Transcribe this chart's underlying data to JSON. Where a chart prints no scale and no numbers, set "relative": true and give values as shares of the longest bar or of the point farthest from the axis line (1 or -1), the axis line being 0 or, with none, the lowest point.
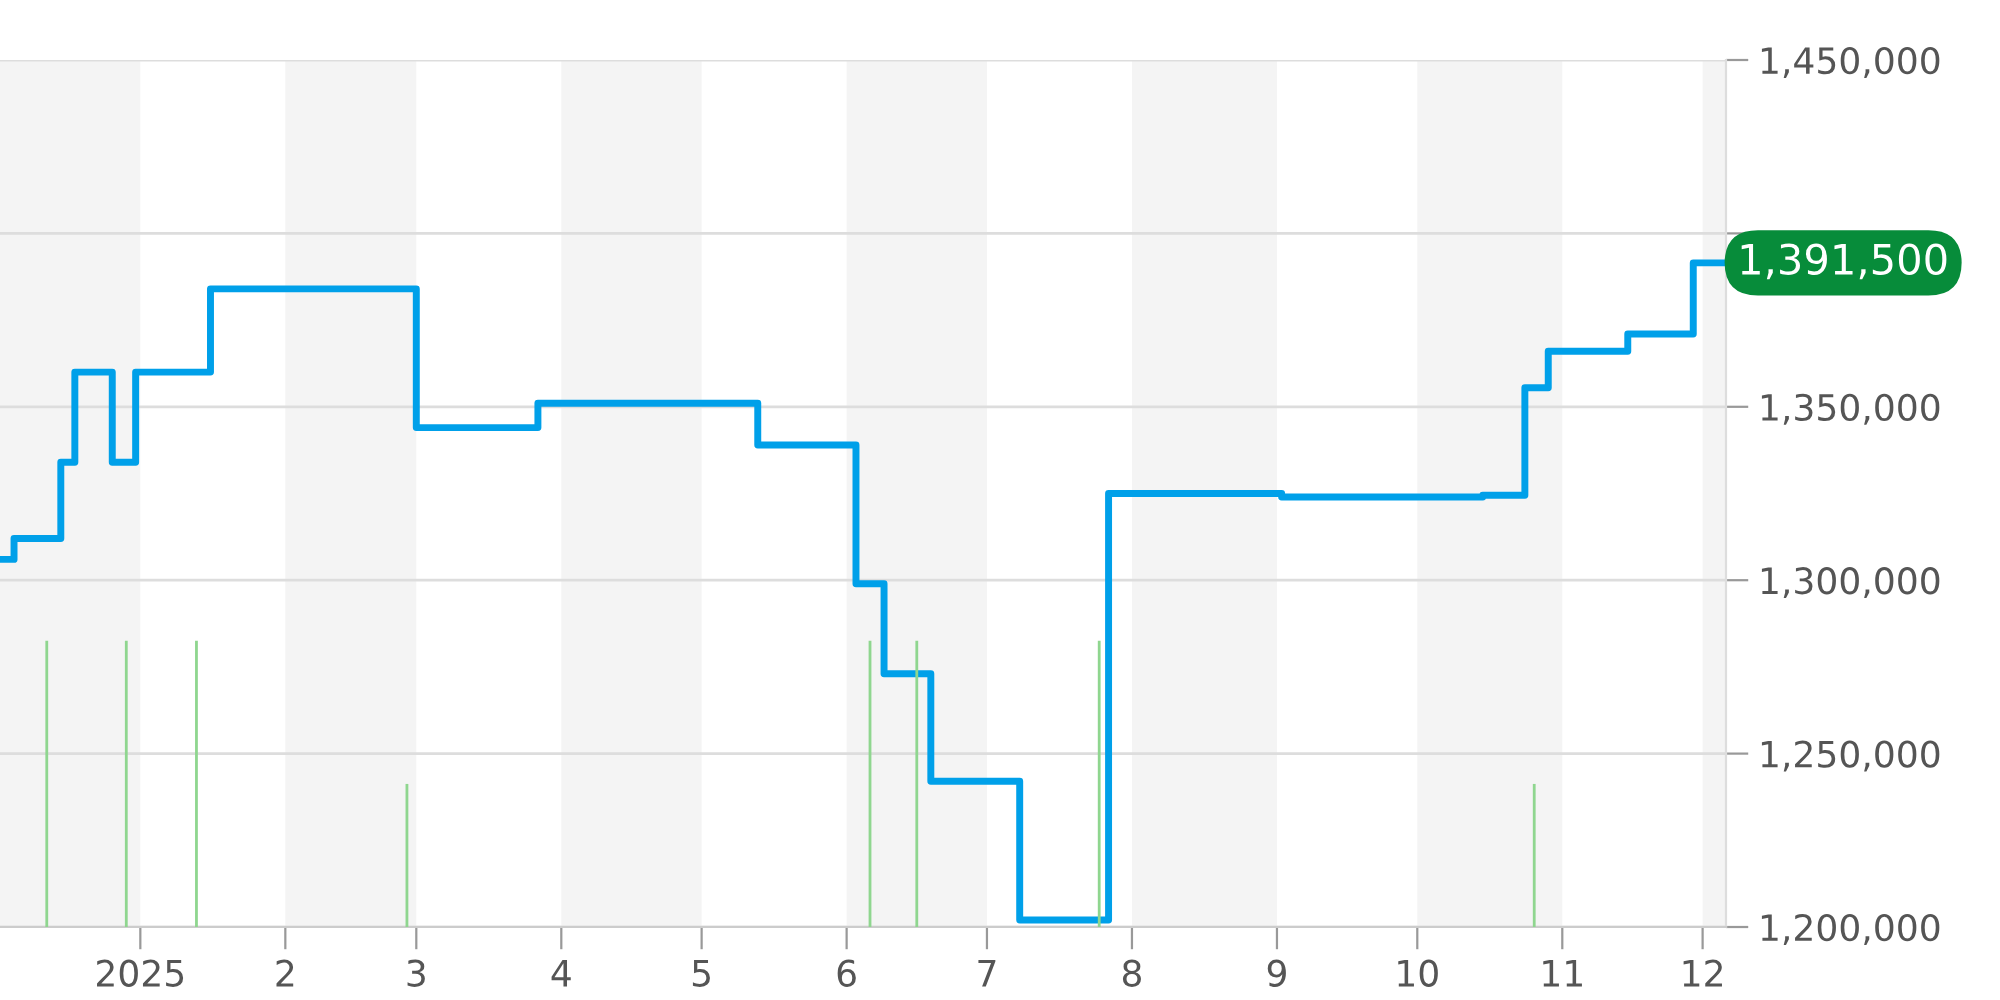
{
  "chart_data": [
    {
      "type": "step",
      "x": [
        "2024-12-02",
        "2024-12-05",
        "2024-12-15",
        "2024-12-18",
        "2024-12-26",
        "2024-12-31",
        "2025-01-16",
        "2025-03-01",
        "2025-03-27",
        "2025-05-13",
        "2025-06-03",
        "2025-06-09",
        "2025-06-19",
        "2025-07-08",
        "2025-07-27",
        "2025-09-02",
        "2025-10-15",
        "2025-10-24",
        "2025-10-29",
        "2025-11-15",
        "2025-11-29",
        "2025-12-06"
      ],
      "series": [
        {
          "color": "#00a0e9",
          "values": [
            1306000,
            1312000,
            1334000,
            1360000,
            1334000,
            1360000,
            1384000,
            1344000,
            1351000,
            1339000,
            1299000,
            1273000,
            1242000,
            1202000,
            1325000,
            1324000,
            1324500,
            1355500,
            1366000,
            1371000,
            1391500,
            1391500
          ]
        }
      ],
      "xlim": [
        "2024-12-02",
        "2025-12-06"
      ],
      "xticks": [
        {
          "value": "2025-01-01",
          "label": "2025"
        },
        {
          "value": "2025-02-01",
          "label": "2"
        },
        {
          "value": "2025-03-01",
          "label": "3"
        },
        {
          "value": "2025-04-01",
          "label": "4"
        },
        {
          "value": "2025-05-01",
          "label": "5"
        },
        {
          "value": "2025-06-01",
          "label": "6"
        },
        {
          "value": "2025-07-01",
          "label": "7"
        },
        {
          "value": "2025-08-01",
          "label": "8"
        },
        {
          "value": "2025-09-01",
          "label": "9"
        },
        {
          "value": "2025-10-01",
          "label": "10"
        },
        {
          "value": "2025-11-01",
          "label": "11"
        },
        {
          "value": "2025-12-01",
          "label": "12"
        }
      ],
      "ylim": [
        1200000,
        1450000
      ],
      "yticks": [
        {
          "value": 1200000,
          "label": "1,200,000"
        },
        {
          "value": 1250000,
          "label": "1,250,000"
        },
        {
          "value": 1300000,
          "label": "1,300,000"
        },
        {
          "value": 1350000,
          "label": "1,350,000"
        },
        {
          "value": 1400000,
          "label": null
        },
        {
          "value": 1450000,
          "label": "1,450,000"
        }
      ],
      "grid": "y",
      "bands": [
        {
          "axis": "x",
          "from": "2024-12-02",
          "to": "2025-01-01",
          "color": "#f4f4f4"
        },
        {
          "axis": "x",
          "from": "2025-02-01",
          "to": "2025-03-01",
          "color": "#f4f4f4"
        },
        {
          "axis": "x",
          "from": "2025-04-01",
          "to": "2025-05-01",
          "color": "#f4f4f4"
        },
        {
          "axis": "x",
          "from": "2025-06-01",
          "to": "2025-07-01",
          "color": "#f4f4f4"
        },
        {
          "axis": "x",
          "from": "2025-08-01",
          "to": "2025-09-01",
          "color": "#f4f4f4"
        },
        {
          "axis": "x",
          "from": "2025-10-01",
          "to": "2025-11-01",
          "color": "#f4f4f4"
        },
        {
          "axis": "x",
          "from": "2025-12-01",
          "to": "2025-12-06",
          "color": "#f4f4f4"
        }
      ],
      "annotations": [
        {
          "text": "1,391,500",
          "x": "2025-12-06",
          "y": 1391500
        }
      ]
    },
    {
      "type": "bar",
      "relative": true,
      "x": [
        "2024-12-12",
        "2024-12-29",
        "2025-01-13",
        "2025-02-27",
        "2025-06-06",
        "2025-06-16",
        "2025-07-25",
        "2025-10-26"
      ],
      "series": [
        {
          "color": "#8fd68f",
          "values": [
            1,
            1,
            1,
            0.5,
            1,
            1,
            1,
            0.5
          ]
        }
      ],
      "xlim": [
        "2024-12-02",
        "2025-12-06"
      ],
      "tick_labels": false
    }
  ]
}
